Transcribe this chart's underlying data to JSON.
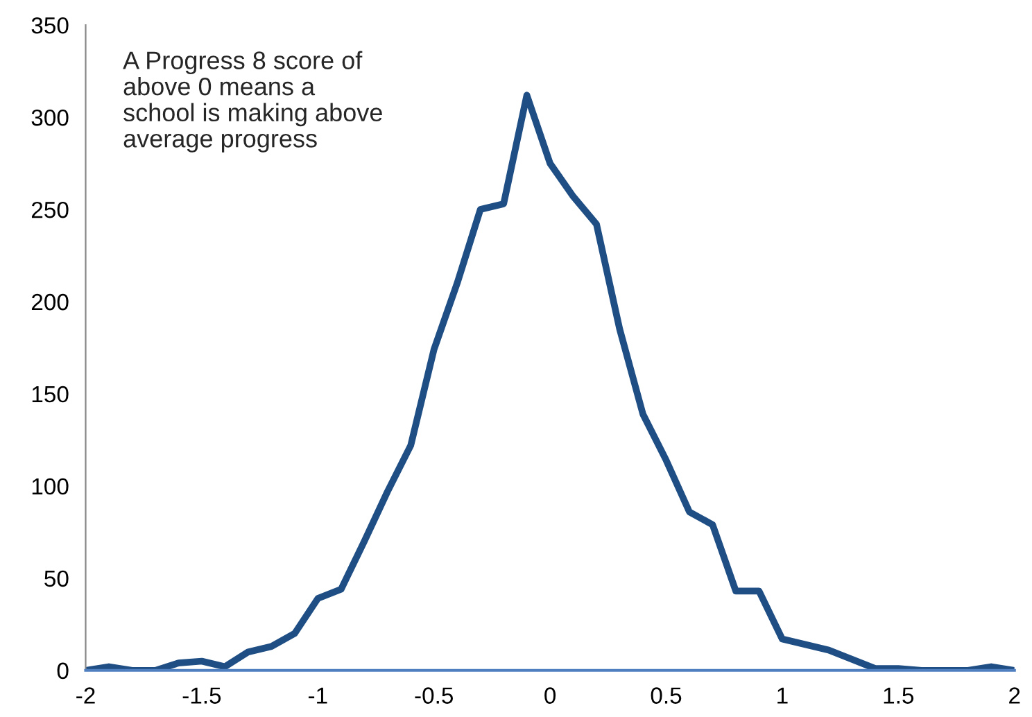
{
  "chart_data": {
    "type": "line",
    "x": [
      -2,
      -1.9,
      -1.8,
      -1.7,
      -1.6,
      -1.5,
      -1.4,
      -1.3,
      -1.2,
      -1.1,
      -1.0,
      -0.9,
      -0.8,
      -0.7,
      -0.6,
      -0.5,
      -0.4,
      -0.3,
      -0.2,
      -0.1,
      0,
      0.1,
      0.2,
      0.3,
      0.4,
      0.5,
      0.6,
      0.7,
      0.8,
      0.9,
      1.0,
      1.1,
      1.2,
      1.3,
      1.4,
      1.5,
      1.6,
      1.7,
      1.8,
      1.9,
      2.0
    ],
    "series": [
      {
        "color": "#1f4e85",
        "values": [
          0,
          2,
          0,
          0,
          4,
          5,
          2,
          10,
          13,
          20,
          39,
          44,
          70,
          97,
          122,
          174,
          210,
          250,
          253,
          312,
          275,
          257,
          242,
          185,
          139,
          114,
          86,
          79,
          43,
          43,
          17,
          14,
          11,
          6,
          1,
          1,
          0,
          0,
          0,
          2,
          0
        ]
      }
    ],
    "xlim": [
      -2,
      2
    ],
    "xticks": [
      -2,
      -1.5,
      -1,
      -0.5,
      0,
      0.5,
      1,
      1.5,
      2
    ],
    "ylim": [
      0,
      350
    ],
    "yticks": [
      0,
      50,
      100,
      150,
      200,
      250,
      300,
      350
    ],
    "annotations": [
      "A Progress 8 score of\nabove 0 means a\nschool is making above\naverage progress"
    ],
    "grid": false,
    "marker": "none",
    "line_style": "solid"
  }
}
